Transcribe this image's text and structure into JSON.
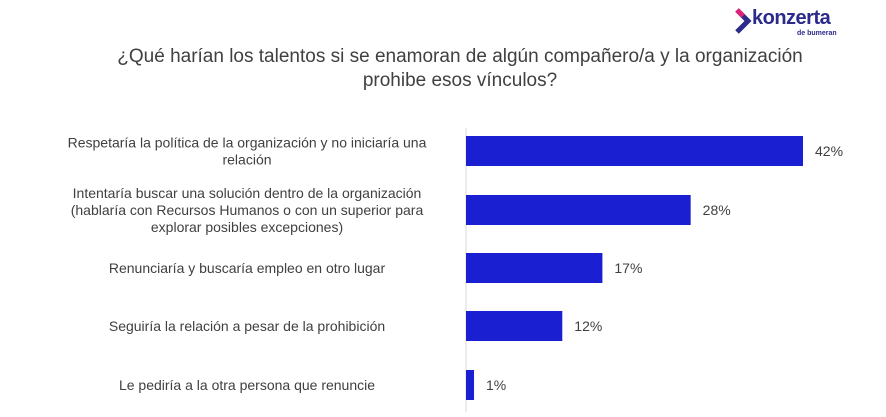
{
  "brand": {
    "name": "konzerta",
    "sub": "de bumeran",
    "color": "#2c2a8a",
    "accent": "#e0217a"
  },
  "chart_data": {
    "type": "bar",
    "orientation": "horizontal",
    "title": "¿Qué harían los talentos si se enamoran de algún compañero/a y la organización prohibe esos vínculos?",
    "categories": [
      [
        "Respetaría la política de la organización y no iniciaría una",
        "relación"
      ],
      [
        "Intentaría buscar una solución dentro de la organización",
        "(hablaría con Recursos Humanos o con un superior para",
        "explorar posibles excepciones)"
      ],
      [
        "Renunciaría y buscaría empleo en otro lugar"
      ],
      [
        "Seguiría la relación a pesar de la prohibición"
      ],
      [
        "Le pediría a la otra persona que renuncie"
      ]
    ],
    "values": [
      42,
      28,
      17,
      12,
      1
    ],
    "value_labels": [
      "42%",
      "28%",
      "17%",
      "12%",
      "1%"
    ],
    "unit": "%",
    "bar_color": "#1a1fd1",
    "grid": false,
    "legend": "none"
  }
}
